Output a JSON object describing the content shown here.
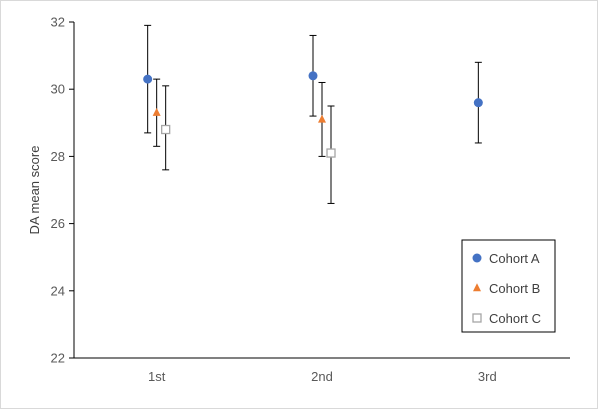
{
  "chart_data": {
    "type": "scatter",
    "title": "",
    "xlabel": "",
    "ylabel": "DA mean score",
    "categories": [
      "1st",
      "2nd",
      "3rd"
    ],
    "ylim": [
      22,
      32
    ],
    "yticks": [
      22,
      24,
      26,
      28,
      30,
      32
    ],
    "grid": false,
    "legend_position": "bottom-right",
    "series": [
      {
        "name": "Cohort A",
        "marker": "circle",
        "color": "#4472C4",
        "values": [
          30.3,
          30.4,
          29.6
        ],
        "err_low": [
          28.7,
          29.2,
          28.4
        ],
        "err_high": [
          31.9,
          31.6,
          30.8
        ]
      },
      {
        "name": "Cohort B",
        "marker": "triangle",
        "color": "#ED7D31",
        "values": [
          29.3,
          29.1,
          null
        ],
        "err_low": [
          28.3,
          28.0,
          null
        ],
        "err_high": [
          30.3,
          30.2,
          null
        ]
      },
      {
        "name": "Cohort C",
        "marker": "square-open",
        "color": "#A6A6A6",
        "values": [
          28.8,
          28.1,
          null
        ],
        "err_low": [
          27.6,
          26.6,
          null
        ],
        "err_high": [
          30.1,
          29.5,
          null
        ]
      }
    ]
  }
}
